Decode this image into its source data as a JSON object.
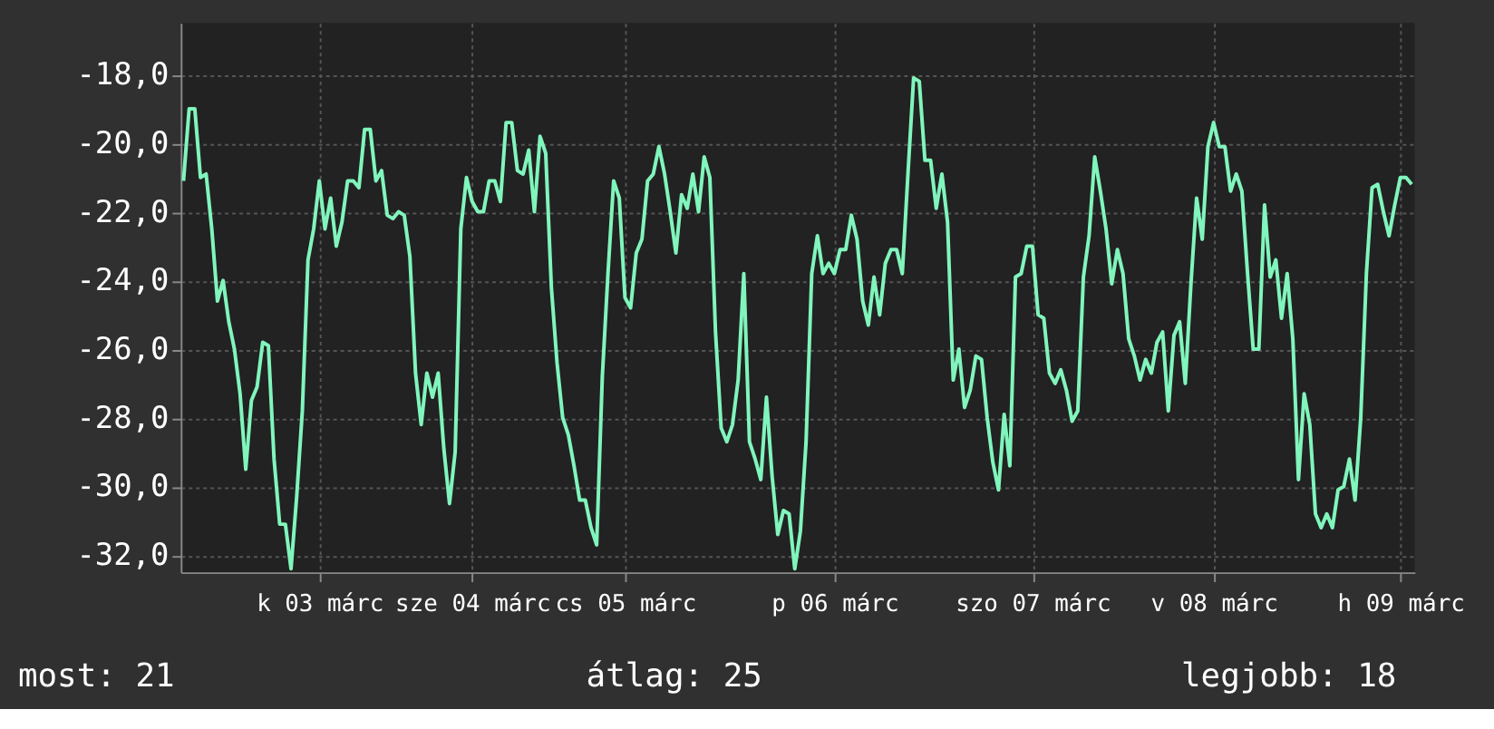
{
  "chart_data": {
    "type": "line",
    "categories": [
      null,
      null,
      null,
      null,
      null,
      null,
      null,
      null,
      null,
      null,
      null,
      null,
      null,
      null,
      null,
      null,
      null,
      null,
      null,
      null,
      null,
      null,
      null,
      null,
      "k 03 márc",
      null,
      null,
      null,
      null,
      null,
      null,
      null,
      null,
      null,
      null,
      null,
      null,
      null,
      null,
      null,
      null,
      null,
      null,
      null,
      null,
      null,
      null,
      null,
      null,
      null,
      null,
      "sze 04 márc",
      null,
      null,
      null,
      null,
      null,
      null,
      null,
      null,
      null,
      null,
      null,
      null,
      null,
      null,
      null,
      null,
      null,
      null,
      null,
      null,
      null,
      null,
      null,
      null,
      null,
      null,
      "cs 05 márc",
      null,
      null,
      null,
      null,
      null,
      null,
      null,
      null,
      null,
      null,
      null,
      null,
      null,
      null,
      null,
      null,
      null,
      null,
      null,
      null,
      null,
      null,
      null,
      null,
      null,
      null,
      null,
      null,
      null,
      null,
      null,
      null,
      null,
      null,
      null,
      null,
      "p 06 márc",
      null,
      null,
      null,
      null,
      null,
      null,
      null,
      null,
      null,
      null,
      null,
      null,
      null,
      null,
      null,
      null,
      null,
      null,
      null,
      null,
      null,
      null,
      null,
      null,
      null,
      null,
      null,
      null,
      null,
      null,
      null,
      null,
      null,
      null,
      "szo 07 márc",
      null,
      null,
      null,
      null,
      null,
      null,
      null,
      null,
      null,
      null,
      null,
      null,
      null,
      null,
      null,
      null,
      null,
      null,
      null,
      null,
      null,
      null,
      null,
      null,
      null,
      null,
      null,
      null,
      null,
      null,
      null,
      "v 08 márc",
      null,
      null,
      null,
      null,
      null,
      null,
      null,
      null,
      null,
      null,
      null,
      null,
      null,
      null,
      null,
      null,
      null,
      null,
      null,
      null,
      null,
      null,
      null,
      null,
      null,
      null,
      null,
      null,
      null,
      null,
      null,
      null,
      "h 09 márc",
      null,
      null
    ],
    "series": [
      {
        "color": "#80f5bc",
        "values": [
          -21.1,
          -19.0,
          -19.0,
          -21.0,
          -20.9,
          -22.5,
          -24.6,
          -24.0,
          -25.2,
          -26.0,
          -27.3,
          -29.5,
          -27.5,
          -27.1,
          -25.8,
          -25.9,
          -29.2,
          -31.1,
          -31.1,
          -32.4,
          -30.3,
          -27.8,
          -23.4,
          -22.5,
          -21.1,
          -22.5,
          -21.6,
          -23.0,
          -22.3,
          -21.1,
          -21.1,
          -21.3,
          -19.6,
          -19.6,
          -21.1,
          -20.8,
          -22.1,
          -22.2,
          -22.0,
          -22.1,
          -23.3,
          -26.7,
          -28.2,
          -26.7,
          -27.4,
          -26.7,
          -28.9,
          -30.5,
          -29.0,
          -22.5,
          -21.0,
          -21.7,
          -22.0,
          -22.0,
          -21.1,
          -21.1,
          -21.7,
          -19.4,
          -19.4,
          -20.8,
          -20.9,
          -20.2,
          -22.0,
          -19.8,
          -20.3,
          -24.2,
          -26.4,
          -28.0,
          -28.5,
          -29.4,
          -30.4,
          -30.4,
          -31.2,
          -31.7,
          -26.8,
          -23.8,
          -21.1,
          -21.6,
          -24.5,
          -24.8,
          -23.2,
          -22.8,
          -21.1,
          -20.9,
          -20.1,
          -20.9,
          -22.0,
          -23.2,
          -21.5,
          -21.9,
          -20.9,
          -22.0,
          -20.4,
          -21.0,
          -25.5,
          -28.3,
          -28.7,
          -28.2,
          -26.9,
          -23.8,
          -28.7,
          -29.2,
          -29.8,
          -27.4,
          -29.7,
          -31.4,
          -30.7,
          -30.8,
          -32.4,
          -31.3,
          -28.7,
          -23.8,
          -22.7,
          -23.8,
          -23.5,
          -23.8,
          -23.1,
          -23.1,
          -22.1,
          -22.8,
          -24.6,
          -25.3,
          -23.9,
          -25.0,
          -23.5,
          -23.1,
          -23.1,
          -23.8,
          -20.9,
          -18.1,
          -18.2,
          -20.5,
          -20.5,
          -21.9,
          -20.9,
          -22.3,
          -26.9,
          -26.0,
          -27.7,
          -27.2,
          -26.2,
          -26.3,
          -28.0,
          -29.3,
          -30.1,
          -27.9,
          -29.4,
          -23.9,
          -23.8,
          -23.0,
          -23.0,
          -25.0,
          -25.1,
          -26.7,
          -27.0,
          -26.6,
          -27.2,
          -28.1,
          -27.8,
          -23.9,
          -22.7,
          -20.4,
          -21.4,
          -22.5,
          -24.1,
          -23.1,
          -23.8,
          -25.7,
          -26.2,
          -26.9,
          -26.3,
          -26.7,
          -25.8,
          -25.5,
          -27.8,
          -25.6,
          -25.2,
          -27.0,
          -24.1,
          -21.6,
          -22.8,
          -20.1,
          -19.4,
          -20.1,
          -20.1,
          -21.4,
          -20.9,
          -21.4,
          -23.8,
          -26.0,
          -26.0,
          -21.8,
          -23.9,
          -23.4,
          -25.1,
          -23.8,
          -25.7,
          -29.8,
          -27.3,
          -28.2,
          -30.8,
          -31.2,
          -30.8,
          -31.2,
          -30.1,
          -30.0,
          -29.2,
          -30.4,
          -28.0,
          -23.8,
          -21.3,
          -21.2,
          -22.0,
          -22.7,
          -21.8,
          -21.0,
          -21.0,
          -21.2
        ]
      }
    ],
    "ylim": [
      -32.5,
      -16.5
    ],
    "yticks": [
      {
        "value": -32,
        "label": "-32,0"
      },
      {
        "value": -30,
        "label": "-30,0"
      },
      {
        "value": -28,
        "label": "-28,0"
      },
      {
        "value": -26,
        "label": "-26,0"
      },
      {
        "value": -24,
        "label": "-24,0"
      },
      {
        "value": -22,
        "label": "-22,0"
      },
      {
        "value": -20,
        "label": "-20,0"
      },
      {
        "value": -18,
        "label": "-18,0"
      }
    ],
    "grid": true,
    "line_style": "solid",
    "annotations": [
      "most: 21",
      "átlag: 25",
      "legjobb: 18"
    ]
  }
}
